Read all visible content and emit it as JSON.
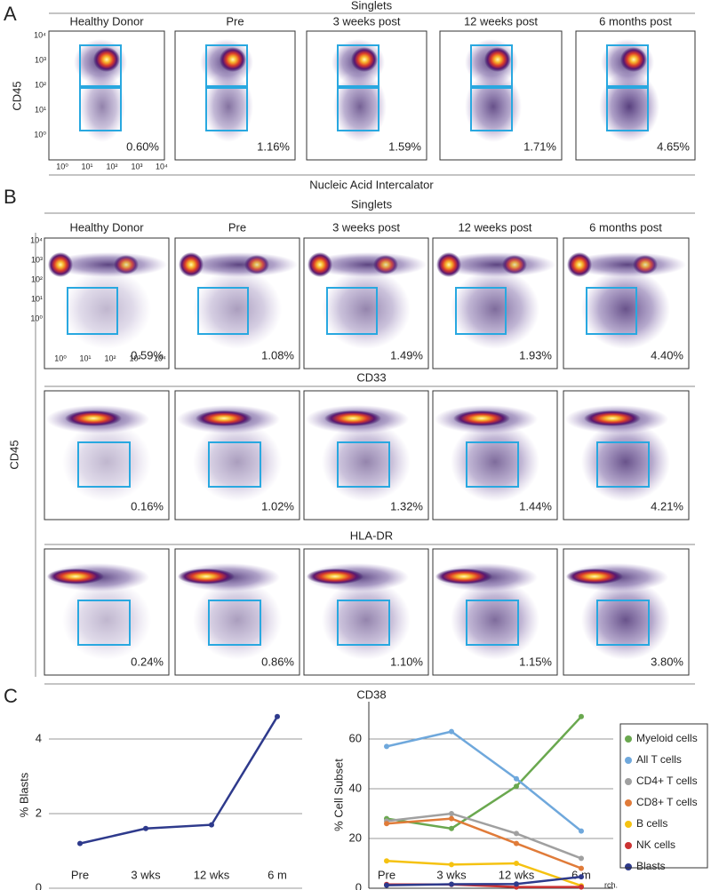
{
  "panel_a": {
    "label": "A",
    "header": "Singlets",
    "columns": [
      "Healthy Donor",
      "Pre",
      "3 weeks post",
      "12 weeks post",
      "6 months post"
    ],
    "percents": [
      "0.60%",
      "1.16%",
      "1.59%",
      "1.71%",
      "4.65%"
    ],
    "y_axis_label": "CD45",
    "x_axis_label": "Nucleic Acid Intercalator",
    "log_ticks": [
      "10⁰",
      "10¹",
      "10²",
      "10³",
      "10⁴"
    ]
  },
  "panel_b": {
    "label": "B",
    "header": "Singlets",
    "columns": [
      "Healthy Donor",
      "Pre",
      "3 weeks post",
      "12 weeks post",
      "6 months post"
    ],
    "y_axis_label": "CD45",
    "x_axis_label": "CD38",
    "log_ticks": [
      "10⁰",
      "10¹",
      "10²",
      "10³",
      "10⁴"
    ],
    "rows": [
      {
        "percents": [
          "0.59%",
          "1.08%",
          "1.49%",
          "1.93%",
          "4.40%"
        ]
      },
      {
        "title": "CD33",
        "percents": [
          "0.16%",
          "1.02%",
          "1.32%",
          "1.44%",
          "4.21%"
        ]
      },
      {
        "title": "HLA-DR",
        "percents": [
          "0.24%",
          "0.86%",
          "1.10%",
          "1.15%",
          "3.80%"
        ]
      }
    ]
  },
  "panel_c": {
    "label": "C",
    "note": "rch."
  },
  "chart_data": [
    {
      "type": "line",
      "y_label": "% Blasts",
      "categories": [
        "Pre",
        "3 wks",
        "12 wks",
        "6 m"
      ],
      "series": [
        {
          "color": "#2e3a8c",
          "values": [
            1.2,
            1.6,
            1.7,
            4.6
          ]
        }
      ],
      "ylim": [
        0,
        5
      ],
      "yticks": [
        0,
        2,
        4
      ],
      "grid": true
    },
    {
      "type": "line",
      "y_label": "% Cell Subset",
      "categories": [
        "Pre",
        "3 wks",
        "12 wks",
        "6 m"
      ],
      "series": [
        {
          "name": "Myeloid cells",
          "color": "#6aa84f",
          "values": [
            28,
            24,
            41,
            69
          ]
        },
        {
          "name": "All T cells",
          "color": "#6fa8dc",
          "values": [
            57,
            63,
            44,
            23
          ]
        },
        {
          "name": "CD4+ T cells",
          "color": "#a0a0a0",
          "values": [
            27,
            30,
            22,
            12
          ]
        },
        {
          "name": "CD8+ T cells",
          "color": "#e07b39",
          "values": [
            26,
            28,
            18,
            8
          ]
        },
        {
          "name": "B cells",
          "color": "#f5c211",
          "values": [
            11,
            9.5,
            10,
            1
          ]
        },
        {
          "name": "NK cells",
          "color": "#cc3333",
          "values": [
            1.5,
            1.5,
            0.5,
            0.5
          ]
        },
        {
          "name": "Blasts",
          "color": "#2e3a8c",
          "values": [
            1.2,
            1.6,
            1.7,
            4.6
          ]
        }
      ],
      "ylim": [
        0,
        75
      ],
      "yticks": [
        0,
        20,
        40,
        60
      ],
      "grid": true
    }
  ]
}
